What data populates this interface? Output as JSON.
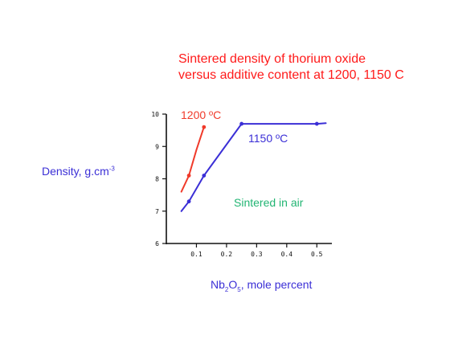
{
  "chart_data": {
    "type": "line",
    "title_line1": "Sintered density of thorium oxide",
    "title_line2": "versus additive content at 1200, 1150 C",
    "ylabel_main": "Density, g.cm",
    "ylabel_sup": "-3",
    "xlabel_part1": "Nb",
    "xlabel_sub1": "2",
    "xlabel_part2": "O",
    "xlabel_sub2": "5",
    "xlabel_part3": ", mole percent",
    "xlim": [
      0,
      0.55
    ],
    "ylim": [
      6,
      10
    ],
    "x_ticks": [
      {
        "value": 0.1,
        "label": "0.1"
      },
      {
        "value": 0.2,
        "label": "0.2"
      },
      {
        "value": 0.3,
        "label": "0.3"
      },
      {
        "value": 0.4,
        "label": "0.4"
      },
      {
        "value": 0.5,
        "label": "0.5"
      }
    ],
    "y_ticks": [
      {
        "value": 6,
        "label": "6"
      },
      {
        "value": 7,
        "label": "7"
      },
      {
        "value": 8,
        "label": "8"
      },
      {
        "value": 9,
        "label": "9"
      },
      {
        "value": 10,
        "label": "10"
      }
    ],
    "annotation": "Sintered in air",
    "annotation_color": "#22b573",
    "series": [
      {
        "name": "1200 ºC",
        "color": "#f03a2a",
        "line_x": [
          0.05,
          0.075,
          0.1,
          0.125
        ],
        "line_y": [
          7.6,
          8.1,
          8.9,
          9.6
        ],
        "points_x": [
          0.075,
          0.125
        ],
        "points_y": [
          8.1,
          9.6
        ]
      },
      {
        "name": "1150 ºC",
        "color": "#3b2fd6",
        "line_x": [
          0.05,
          0.075,
          0.125,
          0.25,
          0.5,
          0.53
        ],
        "line_y": [
          7.0,
          7.3,
          8.1,
          9.7,
          9.7,
          9.72
        ],
        "points_x": [
          0.075,
          0.125,
          0.25,
          0.5
        ],
        "points_y": [
          7.3,
          8.1,
          9.7,
          9.7
        ]
      }
    ]
  }
}
